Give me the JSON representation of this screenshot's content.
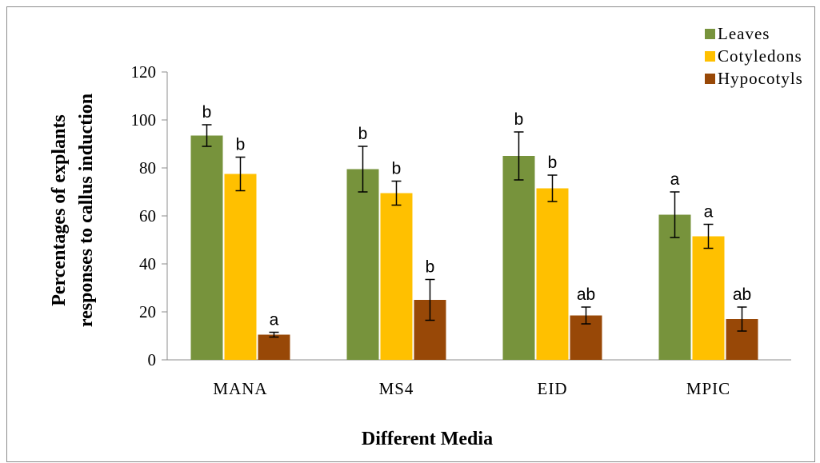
{
  "chart_data": {
    "type": "bar",
    "categories": [
      "MANA",
      "MS4",
      "EID",
      "MPIC"
    ],
    "series": [
      {
        "name": "Leaves",
        "color": "#77933c",
        "values": [
          93.5,
          79.5,
          85,
          60.5
        ],
        "errors": [
          4.5,
          9.5,
          10,
          9.5
        ],
        "letters": [
          "b",
          "b",
          "b",
          "a"
        ]
      },
      {
        "name": "Cotyledons",
        "color": "#ffc000",
        "values": [
          77.5,
          69.5,
          71.5,
          51.5
        ],
        "errors": [
          7,
          5,
          5.5,
          5
        ],
        "letters": [
          "b",
          "b",
          "b",
          "a"
        ]
      },
      {
        "name": "Hypocotyls",
        "color": "#984807",
        "values": [
          10.5,
          25,
          18.5,
          17
        ],
        "errors": [
          1,
          8.5,
          3.5,
          5
        ],
        "letters": [
          "a",
          "b",
          "ab",
          "ab"
        ]
      }
    ],
    "ylim": [
      0,
      120
    ],
    "yticks": [
      0,
      20,
      40,
      60,
      80,
      100,
      120
    ],
    "ylabel_line1": "Percentages of explants",
    "ylabel_line2": "responses to callus induction",
    "xlabel": "Different Media",
    "legend_position": "top-right",
    "grid": false
  }
}
